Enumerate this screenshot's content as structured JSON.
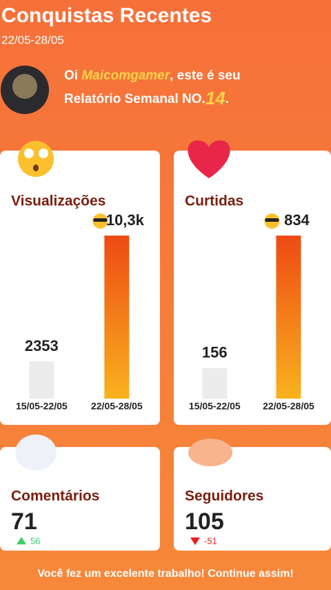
{
  "header": {
    "title": "Conquistas Recentes",
    "date_range": "22/05-28/05"
  },
  "greeting": {
    "prefix": "Oi ",
    "username": "Maicomgamer",
    "middle": ", este é seu",
    "line2": "Relatório Semanal NO.",
    "number": "14",
    "suffix": "."
  },
  "charts": [
    {
      "title": "Visualizações",
      "categories": [
        "15/05-22/05",
        "22/05-28/05"
      ],
      "values": [
        2353,
        10300
      ],
      "value_labels": [
        "2353",
        "10,3k"
      ]
    },
    {
      "title": "Curtidas",
      "categories": [
        "15/05-22/05",
        "22/05-28/05"
      ],
      "values": [
        156,
        834
      ],
      "value_labels": [
        "156",
        "834"
      ]
    }
  ],
  "stats": [
    {
      "title": "Comentários",
      "value": 71,
      "change": 56
    },
    {
      "title": "Seguidores",
      "value": 105,
      "change": -51
    }
  ],
  "footer": "Você fez um excelente trabalho! Continue assim!"
}
